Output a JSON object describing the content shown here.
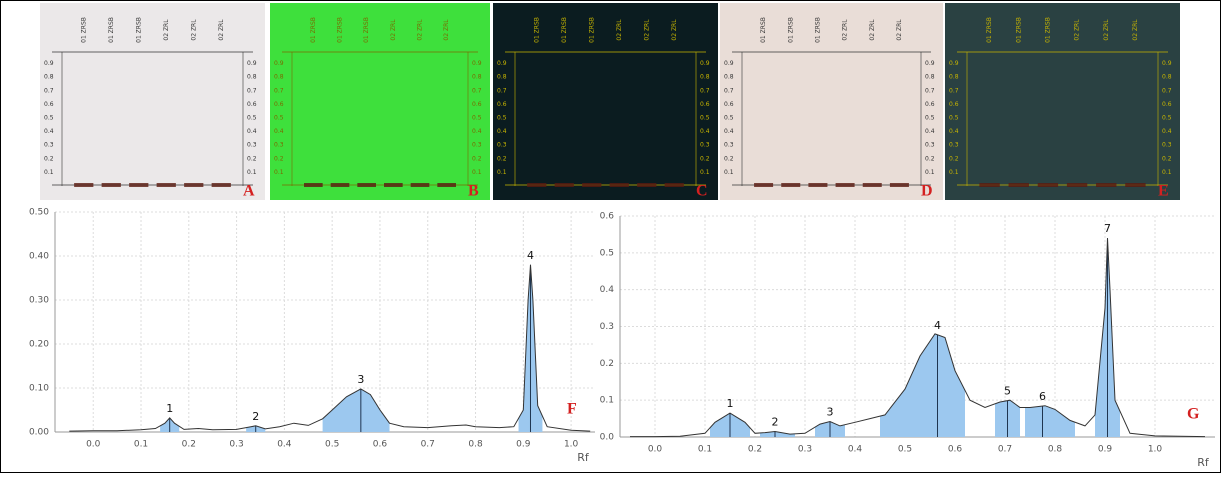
{
  "plates": {
    "lanes": [
      "01 ZRSB",
      "01 ZRSB",
      "01 ZRSB",
      "02 ZRL",
      "02 ZRL",
      "02 ZRL"
    ],
    "rf_ticks": [
      0.1,
      0.2,
      0.3,
      0.4,
      0.5,
      0.6,
      0.7,
      0.8,
      0.9
    ],
    "panels": [
      {
        "letter": "A",
        "background": "#ebe8e9",
        "ink": "#333333"
      },
      {
        "letter": "B",
        "background": "#3ee03c",
        "ink": "#7a6a00"
      },
      {
        "letter": "C",
        "background": "#0b1c20",
        "ink": "#c9b600"
      },
      {
        "letter": "D",
        "background": "#e9ddd7",
        "ink": "#333333"
      },
      {
        "letter": "E",
        "background": "#2a4142",
        "ink": "#c9b600"
      }
    ]
  },
  "chart_data": [
    {
      "type": "line",
      "panel_label": "F",
      "x_label": "Rf",
      "color": "#333333",
      "shade": "#9cc8ef",
      "x": [
        -0.05,
        0.0,
        0.05,
        0.1,
        0.13,
        0.15,
        0.16,
        0.17,
        0.19,
        0.22,
        0.25,
        0.3,
        0.33,
        0.34,
        0.36,
        0.39,
        0.42,
        0.45,
        0.48,
        0.5,
        0.53,
        0.56,
        0.58,
        0.6,
        0.62,
        0.65,
        0.7,
        0.75,
        0.78,
        0.8,
        0.85,
        0.88,
        0.9,
        0.91,
        0.915,
        0.92,
        0.93,
        0.95,
        1.0,
        1.04
      ],
      "values": [
        0.002,
        0.003,
        0.003,
        0.005,
        0.008,
        0.02,
        0.032,
        0.02,
        0.006,
        0.008,
        0.005,
        0.006,
        0.012,
        0.014,
        0.007,
        0.012,
        0.02,
        0.015,
        0.03,
        0.05,
        0.08,
        0.098,
        0.085,
        0.05,
        0.02,
        0.012,
        0.01,
        0.014,
        0.016,
        0.012,
        0.01,
        0.012,
        0.05,
        0.3,
        0.38,
        0.3,
        0.06,
        0.012,
        0.004,
        0.002
      ],
      "peaks": [
        {
          "label": "1",
          "x": 0.16,
          "range": [
            0.14,
            0.18
          ]
        },
        {
          "label": "2",
          "x": 0.34,
          "range": [
            0.32,
            0.36
          ]
        },
        {
          "label": "3",
          "x": 0.56,
          "range": [
            0.48,
            0.62
          ]
        },
        {
          "label": "4",
          "x": 0.915,
          "range": [
            0.89,
            0.94
          ]
        }
      ],
      "xlim": [
        -0.08,
        1.05
      ],
      "xticks": [
        {
          "value": 0,
          "label": "0.0"
        },
        0.1,
        0.2,
        0.3,
        0.4,
        0.5,
        0.6,
        0.7,
        0.8,
        0.9,
        {
          "value": 1,
          "label": "1.0"
        }
      ],
      "ylim": [
        0,
        0.5
      ],
      "yticks": [
        {
          "value": 0,
          "label": "0.00"
        },
        {
          "value": 0.1,
          "label": "0.10"
        },
        {
          "value": 0.2,
          "label": "0.20"
        },
        {
          "value": 0.3,
          "label": "0.30"
        },
        {
          "value": 0.4,
          "label": "0.40"
        },
        {
          "value": 0.5,
          "label": "0.50"
        }
      ],
      "grid": true
    },
    {
      "type": "line",
      "panel_label": "G",
      "x_label": "Rf",
      "color": "#333333",
      "shade": "#9cc8ef",
      "x": [
        -0.05,
        0.0,
        0.05,
        0.1,
        0.12,
        0.15,
        0.18,
        0.2,
        0.22,
        0.24,
        0.27,
        0.3,
        0.33,
        0.35,
        0.37,
        0.4,
        0.43,
        0.46,
        0.5,
        0.53,
        0.56,
        0.58,
        0.6,
        0.63,
        0.66,
        0.69,
        0.71,
        0.73,
        0.75,
        0.78,
        0.8,
        0.83,
        0.86,
        0.88,
        0.9,
        0.905,
        0.91,
        0.92,
        0.95,
        1.0,
        1.1
      ],
      "values": [
        0.001,
        0.001,
        0.002,
        0.01,
        0.04,
        0.065,
        0.04,
        0.01,
        0.012,
        0.015,
        0.008,
        0.01,
        0.035,
        0.042,
        0.03,
        0.04,
        0.05,
        0.06,
        0.13,
        0.22,
        0.28,
        0.27,
        0.18,
        0.1,
        0.08,
        0.095,
        0.1,
        0.08,
        0.08,
        0.085,
        0.075,
        0.045,
        0.03,
        0.06,
        0.35,
        0.54,
        0.4,
        0.1,
        0.01,
        0.003,
        0.001
      ],
      "peaks": [
        {
          "label": "1",
          "x": 0.15,
          "range": [
            0.11,
            0.19
          ]
        },
        {
          "label": "2",
          "x": 0.24,
          "range": [
            0.21,
            0.28
          ]
        },
        {
          "label": "3",
          "x": 0.35,
          "range": [
            0.32,
            0.38
          ]
        },
        {
          "label": "4",
          "x": 0.565,
          "range": [
            0.45,
            0.62
          ]
        },
        {
          "label": "5",
          "x": 0.705,
          "range": [
            0.68,
            0.73
          ]
        },
        {
          "label": "6",
          "x": 0.775,
          "range": [
            0.74,
            0.84
          ]
        },
        {
          "label": "7",
          "x": 0.905,
          "range": [
            0.88,
            0.93
          ]
        }
      ],
      "xlim": [
        -0.07,
        1.12
      ],
      "xticks": [
        {
          "value": 0,
          "label": "0.0"
        },
        0.1,
        0.2,
        0.3,
        0.4,
        0.5,
        0.6,
        0.7,
        0.8,
        0.9,
        {
          "value": 1,
          "label": "1.0"
        }
      ],
      "ylim": [
        0,
        0.6
      ],
      "yticks": [
        {
          "value": 0,
          "label": "0.0"
        },
        0.1,
        0.2,
        0.3,
        0.4,
        0.5,
        0.6
      ],
      "grid": true
    }
  ]
}
